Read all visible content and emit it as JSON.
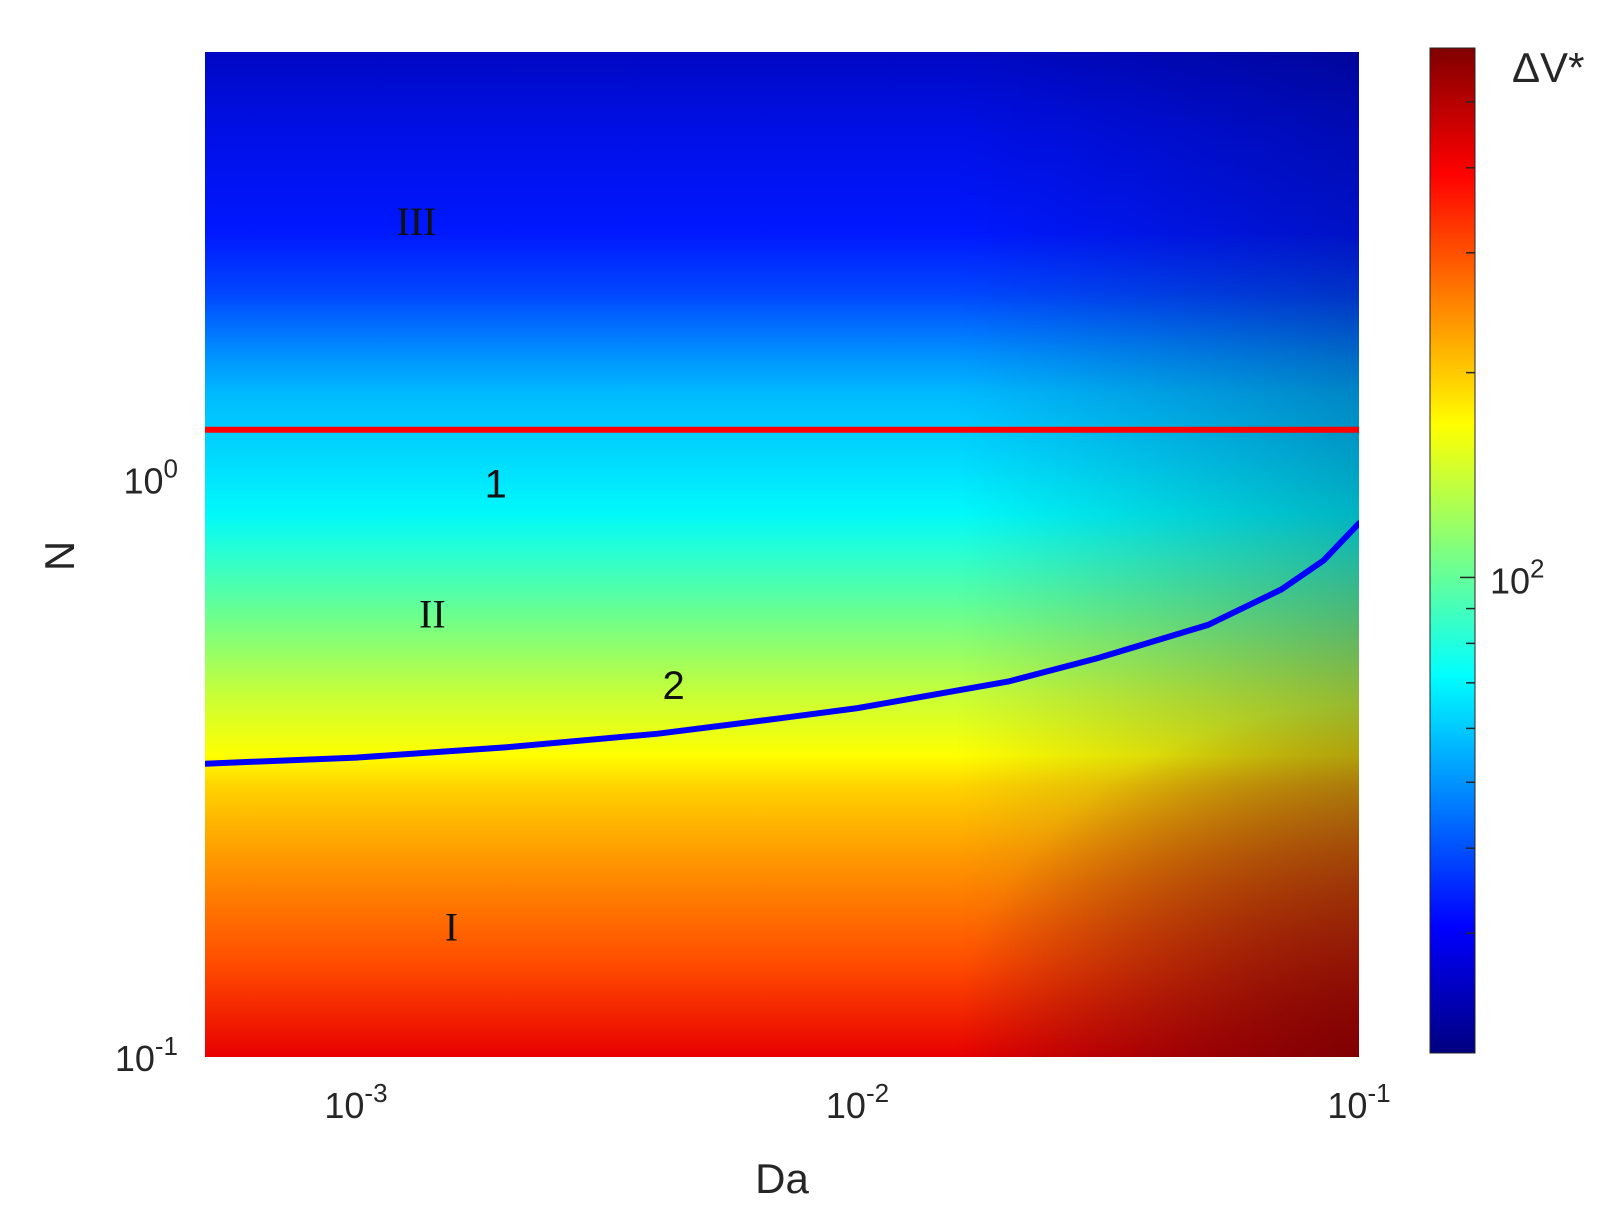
{
  "chart_data": {
    "type": "heatmap",
    "xlabel": "Da",
    "ylabel": "N",
    "colorbar_label": "ΔV*",
    "x_scale": "log",
    "y_scale": "log",
    "xlim": [
      0.0005,
      0.1
    ],
    "ylim": [
      0.1,
      5.5
    ],
    "clim": [
      20,
      600
    ],
    "colormap": "jet",
    "x_ticks": [
      {
        "value": 0.001,
        "base": "10",
        "exp": "-3"
      },
      {
        "value": 0.01,
        "base": "10",
        "exp": "-2"
      },
      {
        "value": 0.1,
        "base": "10",
        "exp": "-1"
      }
    ],
    "y_ticks": [
      {
        "value": 0.1,
        "base": "10",
        "exp": "-1"
      },
      {
        "value": 1,
        "base": "10",
        "exp": "0"
      }
    ],
    "colorbar_ticks": [
      {
        "value": 100,
        "base": "10",
        "exp": "2"
      }
    ],
    "colorbar_minor_ticks": [
      30,
      40,
      50,
      60,
      70,
      80,
      90,
      200,
      300,
      400,
      500
    ],
    "curves": [
      {
        "label": "1",
        "color": "#ff0000",
        "points": [
          [
            0.0005,
            1.22
          ],
          [
            0.1,
            1.22
          ]
        ]
      },
      {
        "label": "2",
        "color": "#0000ff",
        "points": [
          [
            0.0005,
            0.322
          ],
          [
            0.001,
            0.33
          ],
          [
            0.002,
            0.344
          ],
          [
            0.004,
            0.363
          ],
          [
            0.007,
            0.386
          ],
          [
            0.01,
            0.402
          ],
          [
            0.02,
            0.447
          ],
          [
            0.03,
            0.49
          ],
          [
            0.05,
            0.56
          ],
          [
            0.07,
            0.645
          ],
          [
            0.085,
            0.724
          ],
          [
            0.1,
            0.84
          ]
        ]
      }
    ],
    "curve_label_positions": [
      {
        "text": "1",
        "x": 0.0019,
        "y": 0.97
      },
      {
        "text": "2",
        "x": 0.0043,
        "y": 0.435
      }
    ],
    "regions": [
      {
        "text": "III",
        "x": 0.00132,
        "y": 2.75
      },
      {
        "text": "II",
        "x": 0.00142,
        "y": 0.575
      },
      {
        "text": "I",
        "x": 0.00155,
        "y": 0.165
      }
    ]
  }
}
